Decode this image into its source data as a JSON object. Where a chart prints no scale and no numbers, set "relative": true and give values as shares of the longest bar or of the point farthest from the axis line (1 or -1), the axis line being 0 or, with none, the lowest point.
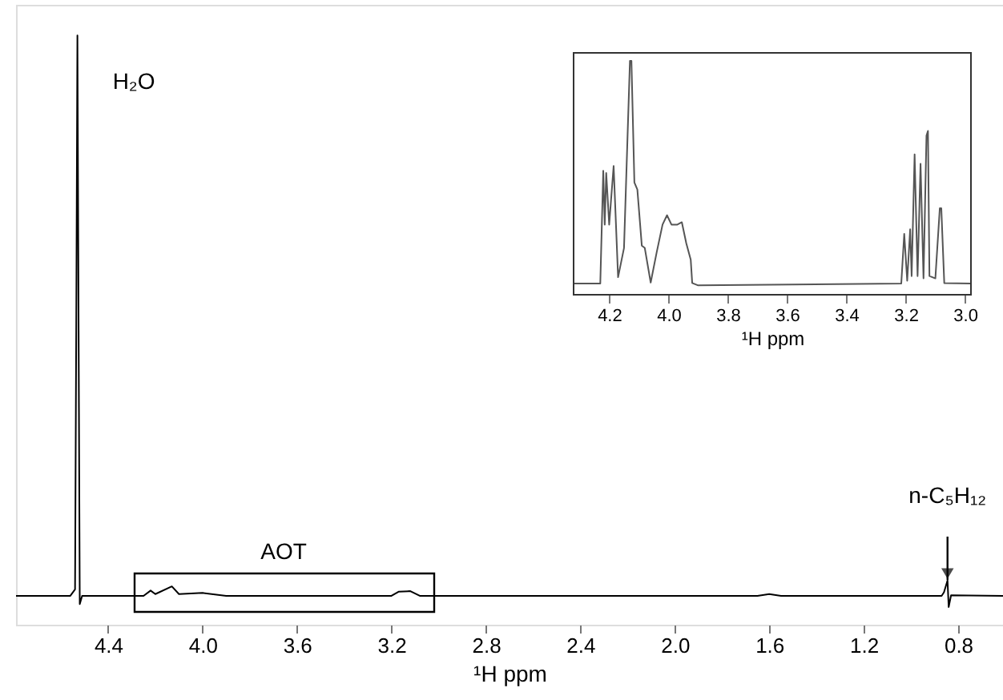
{
  "chart_data": [
    {
      "type": "line",
      "relative": true,
      "xlabel": "¹H ppm",
      "xlim": [
        4.79,
        0.61
      ],
      "xticks": [
        4.4,
        {
          "value": 4,
          "label": "4.0"
        },
        3.6,
        3.2,
        2.8,
        2.4,
        {
          "value": 2,
          "label": "2.0"
        },
        1.6,
        1.2,
        0.8
      ],
      "grid": false,
      "marker": "none",
      "line_style": "solid",
      "series": [
        {
          "color": "#000000",
          "x": [
            4.79,
            4.56,
            4.54,
            4.535,
            4.53,
            4.525,
            4.52,
            4.51,
            4.25,
            4.22,
            4.2,
            4.13,
            4.1,
            4.0,
            3.9,
            3.2,
            3.17,
            3.12,
            3.08,
            1.65,
            1.6,
            1.55,
            0.87,
            0.86,
            0.845,
            0.84,
            0.83,
            0.61
          ],
          "values": [
            0.049,
            0.049,
            0.06,
            0.5,
            1,
            0.5,
            0.035,
            0.049,
            0.049,
            0.058,
            0.052,
            0.065,
            0.052,
            0.054,
            0.049,
            0.049,
            0.056,
            0.057,
            0.049,
            0.049,
            0.052,
            0.049,
            0.049,
            0.055,
            0.075,
            0.03,
            0.05,
            0.049
          ]
        }
      ],
      "annotations": [
        {
          "text": "H₂O",
          "x": 4.53,
          "y": 0.92
        },
        "AOT",
        {
          "text": "n-C₅H₁₂",
          "x": 0.845,
          "y": 0.076
        }
      ]
    },
    {
      "type": "line",
      "relative": true,
      "xlabel": "¹H ppm",
      "xlim": [
        4.32,
        2.98
      ],
      "xticks": [
        4.2,
        {
          "value": 4,
          "label": "4.0"
        },
        3.8,
        3.6,
        3.4,
        3.2,
        {
          "value": 3,
          "label": "3.0"
        }
      ],
      "grid": false,
      "marker": "none",
      "line_style": "solid",
      "series": [
        {
          "color": "#555555",
          "x": [
            4.32,
            4.23,
            4.22,
            4.215,
            4.21,
            4.2,
            4.185,
            4.17,
            4.15,
            4.13,
            4.125,
            4.115,
            4.105,
            4.09,
            4.08,
            4.06,
            4.04,
            4.02,
            4.005,
            3.99,
            3.97,
            3.955,
            3.94,
            3.925,
            3.92,
            3.9,
            3.215,
            3.205,
            3.195,
            3.185,
            3.18,
            3.17,
            3.16,
            3.15,
            3.14,
            3.13,
            3.125,
            3.12,
            3.1,
            3.085,
            3.08,
            3.07,
            2.98
          ],
          "values": [
            0.048,
            0.048,
            0.53,
            0.3,
            0.52,
            0.3,
            0.55,
            0.075,
            0.2,
            1,
            1,
            0.48,
            0.45,
            0.21,
            0.2,
            0.052,
            0.18,
            0.3,
            0.34,
            0.3,
            0.3,
            0.31,
            0.22,
            0.15,
            0.05,
            0.04,
            0.048,
            0.26,
            0.06,
            0.28,
            0.08,
            0.6,
            0.08,
            0.56,
            0.07,
            0.68,
            0.7,
            0.08,
            0.07,
            0.37,
            0.37,
            0.05,
            0.048
          ]
        }
      ]
    }
  ]
}
